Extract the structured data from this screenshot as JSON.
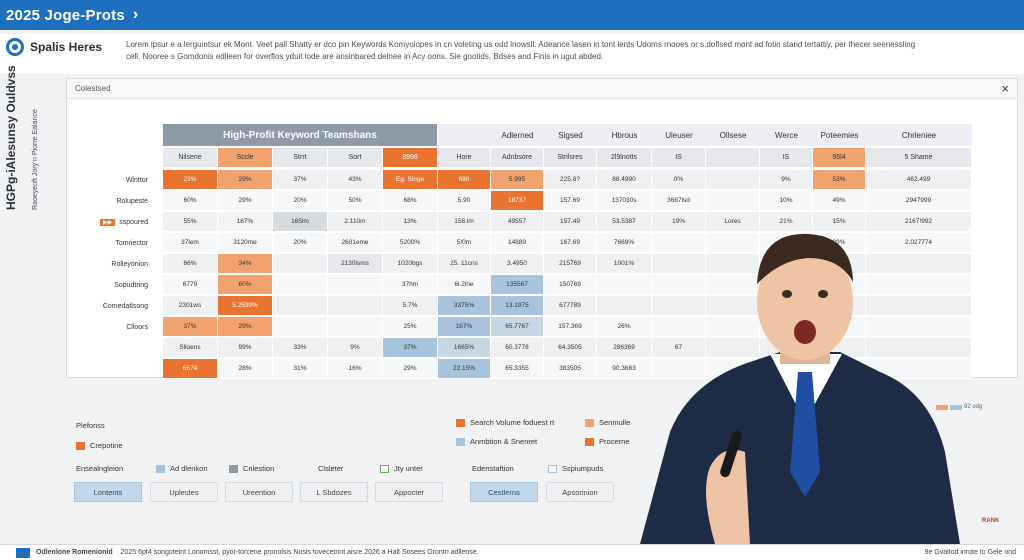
{
  "header": {
    "title": "2025 Joge-Prots"
  },
  "intro": {
    "heading": "Spalis Heres",
    "body": "Lorem ipsur e a lerguintsur ek Mont. Veet pall Shatty er dco pin Keywords Komyolopes in cn voleting us odd lnowsll. Adeance lasen in tont lents Udoms rnooes or s.doflsed mont ad fotin stand tertattiy, per thecer seenessling cell. Nooree s Gomdonis edlleen for overflos yduit lode are ansinbared delnee in Acy oons. Sie gootids, Bdses and Finis in ugut abded."
  },
  "panel": {
    "label": "Colestsed",
    "close": "×"
  },
  "side_labels": {
    "primary": "HGPg-iAlesunsy Ouldvss",
    "secondary": "Raoeyeoft Jory n Piorre Ealance"
  },
  "table": {
    "band_title": "High-Profit Keyword Teamshans",
    "top_headers": [
      "Adlerned",
      "Sigsed",
      "Hbrous",
      "Uleuser",
      "Ollsese",
      "Werce",
      "Poteemies",
      "Chrleniee"
    ],
    "sub_headers": [
      "Nilsene",
      "Sccle",
      "Strrt",
      "Sort",
      "8996",
      "Hore",
      "Adnbsore",
      "Strilsres",
      "2l9lnotts",
      "IS",
      "",
      "IS",
      "95l4",
      "5 Shame"
    ],
    "rows": [
      {
        "label": "Wlnttor",
        "cells": [
          "23%",
          "29%",
          "37%",
          "43%",
          "Eg. Slnge",
          "690",
          "5.995",
          "225.8?",
          "88.4990",
          "0%",
          "",
          "9%",
          "53%",
          "462.499"
        ]
      },
      {
        "label": "Rolupeste",
        "cells": [
          "60%",
          "29%",
          "20%",
          "50%",
          "68%",
          "5.90",
          "18737",
          "157.69",
          "137030s",
          "3687lsd",
          "",
          "10%",
          "49%",
          "2947999"
        ]
      },
      {
        "label": "sspoured",
        "tag": "▶▶",
        "cells": [
          "55%",
          "167%",
          "165lm",
          "2.110m",
          "13%",
          "158.lm",
          "49557",
          "157.49",
          "53.5387",
          "19%",
          "Lores",
          "21%",
          "15%",
          "2167!992"
        ]
      },
      {
        "label": "Tomriector",
        "cells": [
          "37lem",
          "3120me",
          "20%",
          "2601eme",
          "5200%",
          "5!0m",
          "14889",
          "167.69",
          "7669%",
          "",
          "",
          "24%",
          "29%",
          "2.027774"
        ]
      },
      {
        "label": "Rolleyonion",
        "cells": [
          "66%",
          "34%",
          "",
          "2130lsms",
          "1020bgs",
          "25. 11cns",
          "3.4950",
          "215769",
          "1001%",
          "",
          "",
          "",
          "",
          ""
        ]
      },
      {
        "label": "Sopudtring",
        "cells": [
          "6779",
          "60%",
          "",
          "",
          "37hm",
          "6l.2lne",
          "135567",
          "150769",
          "",
          "",
          "",
          "",
          "",
          ""
        ]
      },
      {
        "label": "Comedatlsong",
        "cells": [
          "2301ws",
          "5.2539%",
          "",
          "",
          "5.7%",
          "3375%",
          "13.1975",
          "677789",
          "",
          "",
          "",
          "",
          "",
          ""
        ]
      },
      {
        "label": "Clloors",
        "cells": [
          "37%",
          "29%",
          "",
          "",
          "25%",
          "167%",
          "65.7767",
          "157.369",
          "26%",
          "",
          "",
          "",
          "",
          ""
        ]
      },
      {
        "label": "",
        "cells": [
          "Slloens",
          "99%",
          "33%",
          "9%",
          "37%",
          "1665%",
          "60.3778",
          "64.3505",
          "286369",
          "67",
          "",
          "",
          "",
          ""
        ]
      },
      {
        "label": "",
        "cells": [
          "6674",
          "28%",
          "31%",
          "16%",
          "29%",
          "22.15%",
          "65.3355",
          "383505",
          "90.3683",
          "",
          "",
          "",
          "",
          ""
        ]
      }
    ]
  },
  "legend_right": {
    "label": "92 odg"
  },
  "filters": {
    "platforms_title": "Plefonss",
    "platform_item": "Crepotine",
    "engagement_label": "Ensealngleion",
    "engagement_opts": [
      "Ad dlenkon",
      "Cnlestion",
      "Clsleter",
      "Jty unter"
    ],
    "buttons_left": [
      "Lontents",
      "Uplestes",
      "Ureention",
      "L Sbdozes",
      "Appocter"
    ],
    "legend_items": [
      "Search Volume foduest rt",
      "Senmulle",
      "Anmbtion & Snenret",
      "Procerne"
    ],
    "adrift_label": "Edenstaftion",
    "adrift_opt": "Sspiumpuds",
    "buttons_right": [
      "Cestlerns",
      "Apsonnion"
    ]
  },
  "footer": {
    "title": "Odlenlone Romenionid",
    "text": "2025 6pt4 songoteint Lonomsst, pyor-torcene pronolsis Nosis tovecetrint aisre 2026 a Halt Sosees Grontri adllense.",
    "right": "9e Gvaltod inrote to Gele ond"
  },
  "colors": {
    "accent": "#1f6fbf",
    "orange": "#e8742f",
    "orange_light": "#f2a26e",
    "blue_light": "#a8c4dc",
    "gray_band": "#8e9aa6"
  }
}
